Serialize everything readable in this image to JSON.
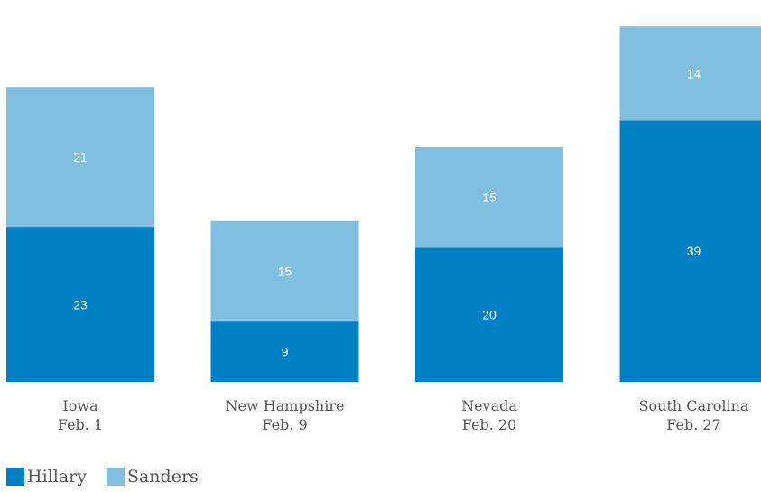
{
  "chart_data": {
    "type": "bar",
    "stacked": true,
    "title": "",
    "xlabel": "",
    "ylabel": "",
    "categories": [
      {
        "name": "Iowa",
        "date": "Feb. 1"
      },
      {
        "name": "New Hampshire",
        "date": "Feb. 9"
      },
      {
        "name": "Nevada",
        "date": "Feb. 20"
      },
      {
        "name": "South Carolina",
        "date": "Feb. 27"
      }
    ],
    "series": [
      {
        "name": "Hillary",
        "color": "#0080c4",
        "values": [
          23,
          9,
          20,
          39
        ]
      },
      {
        "name": "Sanders",
        "color": "#80bfe0",
        "values": [
          21,
          15,
          15,
          14
        ]
      }
    ],
    "ylim": [
      0,
      56
    ],
    "grid": false,
    "legend_position": "bottom-left"
  }
}
